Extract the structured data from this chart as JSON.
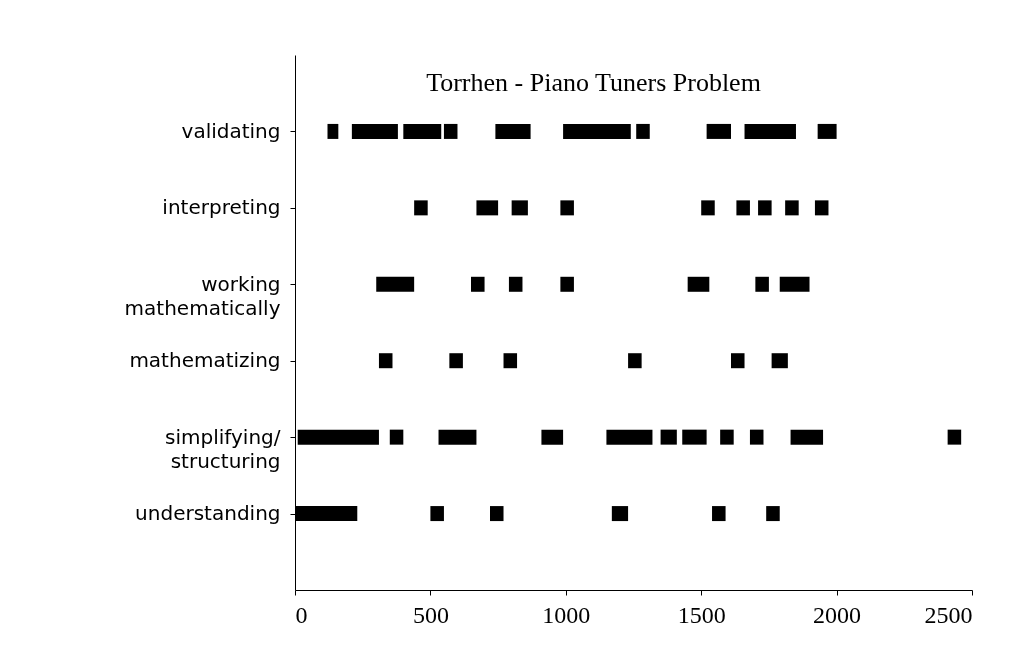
{
  "chart_data": {
    "type": "bar",
    "orientation": "horizontal",
    "title": "Torrhen - Piano Tuners Problem",
    "categories": [
      "validating",
      "interpreting",
      "working\nmathematically",
      "mathematizing",
      "simplifying/\nstructuring",
      "understanding"
    ],
    "xlim": [
      0,
      2500
    ],
    "xticks": [
      0,
      500,
      1000,
      1500,
      2000,
      2500
    ],
    "grid": false,
    "legend": false,
    "series": [
      {
        "color": "#000000",
        "base": [
          120,
          440,
          300,
          310,
          10,
          0
        ],
        "values": [
          40,
          50,
          140,
          50,
          300,
          230
        ]
      },
      {
        "color": "#000000",
        "base": [
          210,
          670,
          650,
          570,
          350,
          500
        ],
        "values": [
          170,
          80,
          50,
          50,
          50,
          50
        ]
      },
      {
        "color": "#000000",
        "base": [
          400,
          800,
          790,
          770,
          530,
          720
        ],
        "values": [
          140,
          60,
          50,
          50,
          140,
          50
        ]
      },
      {
        "color": "#000000",
        "base": [
          550,
          980,
          980,
          1230,
          910,
          1170
        ],
        "values": [
          50,
          50,
          50,
          50,
          80,
          60
        ]
      },
      {
        "color": "#000000",
        "base": [
          740,
          1500,
          1450,
          1610,
          1150,
          1540
        ],
        "values": [
          130,
          50,
          80,
          50,
          170,
          50
        ]
      },
      {
        "color": "#000000",
        "base": [
          990,
          1630,
          1700,
          1760,
          1350,
          1740
        ],
        "values": [
          250,
          50,
          50,
          60,
          60,
          50
        ]
      },
      {
        "color": "#000000",
        "base": [
          1260,
          1710,
          1790,
          null,
          1430,
          null
        ],
        "values": [
          50,
          50,
          110,
          null,
          90,
          null
        ]
      },
      {
        "color": "#000000",
        "base": [
          1520,
          1810,
          null,
          null,
          1570,
          null
        ],
        "values": [
          90,
          50,
          null,
          null,
          50,
          null
        ]
      },
      {
        "color": "#000000",
        "base": [
          1660,
          1920,
          null,
          null,
          1680,
          null
        ],
        "values": [
          190,
          50,
          null,
          null,
          50,
          null
        ]
      },
      {
        "color": "#000000",
        "base": [
          1930,
          null,
          null,
          null,
          1830,
          null
        ],
        "values": [
          70,
          null,
          null,
          null,
          120,
          null
        ]
      },
      {
        "color": "#000000",
        "base": [
          null,
          null,
          null,
          null,
          2410,
          null
        ],
        "values": [
          null,
          null,
          null,
          null,
          50,
          null
        ]
      }
    ]
  }
}
